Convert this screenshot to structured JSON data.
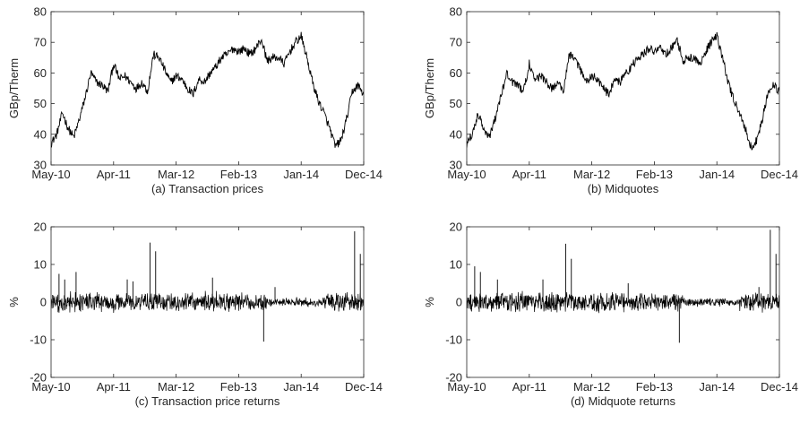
{
  "x_tick_labels": [
    "May-10",
    "Apr-11",
    "Mar-12",
    "Feb-13",
    "Jan-14",
    "Dec-14"
  ],
  "chart_data": [
    {
      "type": "line",
      "caption": "(a) Transaction prices",
      "ylabel": "GBp/Therm",
      "xlabel": "",
      "ylim": [
        30,
        80
      ],
      "yticks": [
        30,
        40,
        50,
        60,
        70,
        80
      ],
      "xlim": [
        "May-10",
        "Dec-14"
      ],
      "xticks": [
        "May-10",
        "Apr-11",
        "Mar-12",
        "Feb-13",
        "Jan-14",
        "Dec-14"
      ],
      "grid": false,
      "color": "#000000",
      "x": [
        "May-10",
        "Jun-10",
        "Jul-10",
        "Aug-10",
        "Sep-10",
        "Oct-10",
        "Nov-10",
        "Dec-10",
        "Jan-11",
        "Feb-11",
        "Mar-11",
        "Apr-11",
        "May-11",
        "Jun-11",
        "Jul-11",
        "Aug-11",
        "Sep-11",
        "Oct-11",
        "Nov-11",
        "Dec-11",
        "Jan-12",
        "Feb-12",
        "Mar-12",
        "Apr-12",
        "May-12",
        "Jun-12",
        "Jul-12",
        "Aug-12",
        "Sep-12",
        "Oct-12",
        "Nov-12",
        "Dec-12",
        "Jan-13",
        "Feb-13",
        "Mar-13",
        "Apr-13",
        "May-13",
        "Jun-13",
        "Jul-13",
        "Aug-13",
        "Sep-13",
        "Oct-13",
        "Nov-13",
        "Dec-13",
        "Jan-14",
        "Feb-14",
        "Mar-14",
        "Apr-14",
        "May-14",
        "Jun-14",
        "Jul-14",
        "Aug-14",
        "Sep-14",
        "Oct-14",
        "Nov-14",
        "Dec-14"
      ],
      "values": [
        37,
        40,
        47,
        42,
        39,
        45,
        52,
        60,
        57,
        56,
        54,
        63,
        58,
        59,
        57,
        55,
        57,
        54,
        66,
        65,
        61,
        57,
        59,
        58,
        55,
        53,
        58,
        57,
        60,
        62,
        65,
        66,
        68,
        67,
        68,
        66,
        68,
        71,
        64,
        65,
        65,
        63,
        67,
        70,
        72,
        65,
        57,
        51,
        47,
        42,
        36,
        38,
        45,
        54,
        56,
        53
      ]
    },
    {
      "type": "line",
      "caption": "(b) Midquotes",
      "ylabel": "GBp/Therm",
      "xlabel": "",
      "ylim": [
        30,
        80
      ],
      "yticks": [
        30,
        40,
        50,
        60,
        70,
        80
      ],
      "xlim": [
        "May-10",
        "Dec-14"
      ],
      "xticks": [
        "May-10",
        "Apr-11",
        "Mar-12",
        "Feb-13",
        "Jan-14",
        "Dec-14"
      ],
      "grid": false,
      "color": "#000000",
      "x": [
        "May-10",
        "Jun-10",
        "Jul-10",
        "Aug-10",
        "Sep-10",
        "Oct-10",
        "Nov-10",
        "Dec-10",
        "Jan-11",
        "Feb-11",
        "Mar-11",
        "Apr-11",
        "May-11",
        "Jun-11",
        "Jul-11",
        "Aug-11",
        "Sep-11",
        "Oct-11",
        "Nov-11",
        "Dec-11",
        "Jan-12",
        "Feb-12",
        "Mar-12",
        "Apr-12",
        "May-12",
        "Jun-12",
        "Jul-12",
        "Aug-12",
        "Sep-12",
        "Oct-12",
        "Nov-12",
        "Dec-12",
        "Jan-13",
        "Feb-13",
        "Mar-13",
        "Apr-13",
        "May-13",
        "Jun-13",
        "Jul-13",
        "Aug-13",
        "Sep-13",
        "Oct-13",
        "Nov-13",
        "Dec-13",
        "Jan-14",
        "Feb-14",
        "Mar-14",
        "Apr-14",
        "May-14",
        "Jun-14",
        "Jul-14",
        "Aug-14",
        "Sep-14",
        "Oct-14",
        "Nov-14",
        "Dec-14"
      ],
      "values": [
        37,
        40,
        47,
        42,
        39,
        45,
        52,
        60,
        57,
        56,
        54,
        63,
        58,
        59,
        57,
        55,
        57,
        54,
        66,
        65,
        61,
        57,
        59,
        58,
        55,
        53,
        58,
        57,
        60,
        62,
        65,
        66,
        68,
        67,
        68,
        66,
        68,
        71,
        64,
        65,
        65,
        63,
        67,
        70,
        72,
        65,
        57,
        51,
        47,
        42,
        36,
        38,
        45,
        54,
        56,
        54
      ]
    },
    {
      "type": "line",
      "caption": "(c) Transaction price returns",
      "ylabel": "%",
      "xlabel": "",
      "ylim": [
        -20,
        20
      ],
      "yticks": [
        -20,
        -10,
        0,
        10,
        20
      ],
      "xlim": [
        "May-10",
        "Dec-14"
      ],
      "xticks": [
        "May-10",
        "Apr-11",
        "Mar-12",
        "Feb-13",
        "Jan-14",
        "Dec-14"
      ],
      "grid": false,
      "color": "#000000",
      "baseline": 0,
      "typical_range": [
        -3,
        3
      ],
      "spikes": [
        {
          "x": "Jun-10",
          "value": 7.5
        },
        {
          "x": "Jul-10",
          "value": 6
        },
        {
          "x": "Sep-10",
          "value": 8
        },
        {
          "x": "Jun-11",
          "value": 6
        },
        {
          "x": "Jul-11",
          "value": 5.5
        },
        {
          "x": "Oct-11",
          "value": 15.8
        },
        {
          "x": "Nov-11",
          "value": 13.5
        },
        {
          "x": "Sep-12",
          "value": 6.5
        },
        {
          "x": "Jun-13",
          "value": -10.5
        },
        {
          "x": "Aug-13",
          "value": 4
        },
        {
          "x": "Oct-14",
          "value": 18.8
        },
        {
          "x": "Nov-14",
          "value": 12.8
        }
      ]
    },
    {
      "type": "line",
      "caption": "(d) Midquote returns",
      "ylabel": "%",
      "xlabel": "",
      "ylim": [
        -20,
        20
      ],
      "yticks": [
        -20,
        -10,
        0,
        10,
        20
      ],
      "xlim": [
        "May-10",
        "Dec-14"
      ],
      "xticks": [
        "May-10",
        "Apr-11",
        "Mar-12",
        "Feb-13",
        "Jan-14",
        "Dec-14"
      ],
      "grid": false,
      "color": "#000000",
      "baseline": 0,
      "typical_range": [
        -3,
        3
      ],
      "spikes": [
        {
          "x": "Jun-10",
          "value": 9.5
        },
        {
          "x": "Jul-10",
          "value": 8
        },
        {
          "x": "Oct-10",
          "value": 6
        },
        {
          "x": "Jun-11",
          "value": 6
        },
        {
          "x": "Oct-11",
          "value": 15.5
        },
        {
          "x": "Nov-11",
          "value": 11.5
        },
        {
          "x": "Sep-12",
          "value": 5
        },
        {
          "x": "Jun-13",
          "value": -10.8
        },
        {
          "x": "Aug-14",
          "value": 4
        },
        {
          "x": "Oct-14",
          "value": 19.2
        },
        {
          "x": "Nov-14",
          "value": 12.8
        }
      ]
    }
  ]
}
